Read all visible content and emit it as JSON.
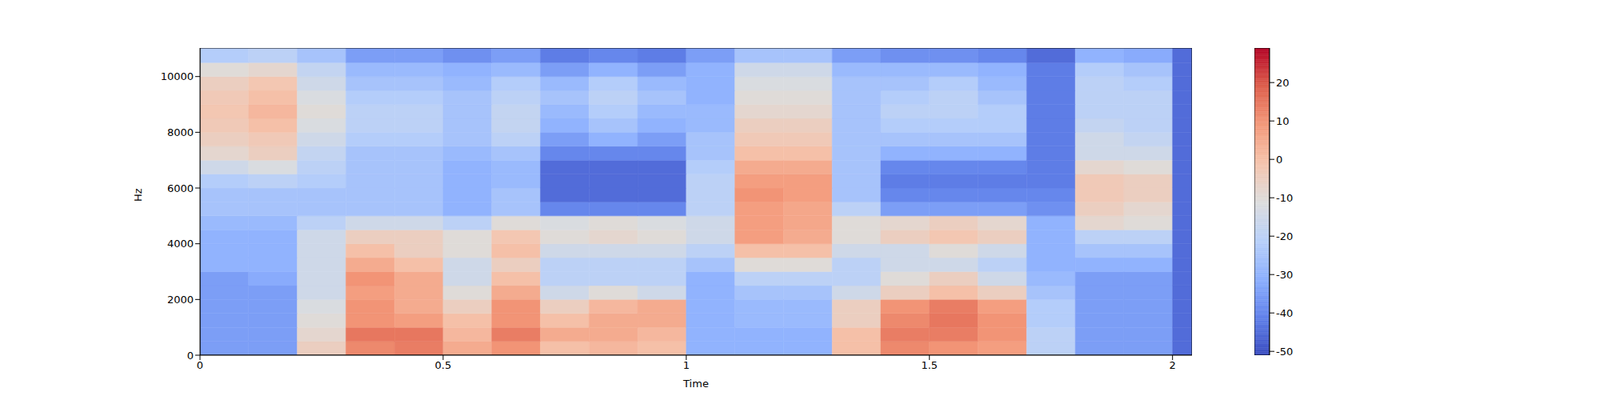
{
  "chart_data": {
    "type": "heatmap",
    "xlabel": "Time",
    "ylabel": "Hz",
    "xlim": [
      0,
      2.04
    ],
    "xticks": [
      0,
      0.5,
      1,
      1.5,
      2
    ],
    "ylim": [
      0,
      11025
    ],
    "yticks": [
      0,
      2000,
      4000,
      6000,
      8000,
      10000
    ],
    "x_edges": [
      0,
      0.1,
      0.2,
      0.3,
      0.4,
      0.5,
      0.6,
      0.7,
      0.8,
      0.9,
      1.0,
      1.1,
      1.2,
      1.3,
      1.4,
      1.5,
      1.6,
      1.7,
      1.8,
      1.9,
      2.0,
      2.04
    ],
    "y_edges": [
      0,
      500,
      1000,
      1500,
      2000,
      2500,
      3000,
      3500,
      4000,
      4500,
      5000,
      5500,
      6000,
      6500,
      7000,
      7500,
      8000,
      8500,
      9000,
      9500,
      10000,
      10500,
      11025
    ],
    "cells": [
      [
        -35,
        -35,
        -5,
        12,
        14,
        5,
        10,
        0,
        2,
        0,
        -30,
        -30,
        -30,
        0,
        12,
        10,
        8,
        -20,
        -35,
        -35,
        -45
      ],
      [
        -35,
        -35,
        -8,
        15,
        15,
        2,
        14,
        5,
        5,
        2,
        -30,
        -30,
        -30,
        0,
        14,
        14,
        10,
        -20,
        -35,
        -35,
        -45
      ],
      [
        -35,
        -35,
        -10,
        10,
        8,
        0,
        10,
        0,
        5,
        5,
        -30,
        -28,
        -28,
        -5,
        12,
        15,
        10,
        -22,
        -35,
        -35,
        -45
      ],
      [
        -35,
        -35,
        -12,
        10,
        5,
        -5,
        10,
        -5,
        2,
        5,
        -30,
        -28,
        -28,
        -5,
        10,
        14,
        8,
        -22,
        -35,
        -35,
        -45
      ],
      [
        -35,
        -35,
        -15,
        8,
        5,
        -10,
        5,
        -15,
        -10,
        -15,
        -30,
        -25,
        -25,
        -15,
        -5,
        0,
        -5,
        -25,
        -35,
        -35,
        -45
      ],
      [
        -35,
        -32,
        -15,
        10,
        5,
        -15,
        0,
        -20,
        -20,
        -20,
        -30,
        -20,
        -20,
        -20,
        -10,
        -5,
        -15,
        -28,
        -35,
        -35,
        -45
      ],
      [
        -30,
        -30,
        -15,
        5,
        0,
        -15,
        -5,
        -20,
        -20,
        -20,
        -25,
        -10,
        -10,
        -20,
        -15,
        -15,
        -20,
        -30,
        -30,
        -30,
        -45
      ],
      [
        -30,
        -30,
        -15,
        0,
        -5,
        -10,
        0,
        -15,
        -15,
        -15,
        -20,
        0,
        0,
        -15,
        -15,
        -10,
        -15,
        -30,
        -25,
        -25,
        -45
      ],
      [
        -30,
        -30,
        -15,
        -5,
        -5,
        -10,
        -2,
        -10,
        -8,
        -10,
        -15,
        8,
        5,
        -10,
        -5,
        -2,
        -5,
        -30,
        -20,
        -20,
        -45
      ],
      [
        -28,
        -28,
        -20,
        -15,
        -15,
        -20,
        -10,
        -12,
        -10,
        -12,
        -15,
        8,
        6,
        -10,
        -8,
        -5,
        -8,
        -30,
        -8,
        -10,
        -45
      ],
      [
        -25,
        -25,
        -25,
        -25,
        -25,
        -30,
        -25,
        -40,
        -40,
        -40,
        -20,
        8,
        6,
        -20,
        -35,
        -35,
        -35,
        -38,
        -5,
        -8,
        -45
      ],
      [
        -25,
        -25,
        -25,
        -25,
        -25,
        -30,
        -25,
        -45,
        -45,
        -45,
        -20,
        10,
        8,
        -25,
        -40,
        -40,
        -40,
        -40,
        -3,
        -5,
        -45
      ],
      [
        -22,
        -20,
        -22,
        -25,
        -25,
        -30,
        -28,
        -45,
        -45,
        -45,
        -20,
        8,
        8,
        -25,
        -42,
        -42,
        -42,
        -42,
        -3,
        -5,
        -45
      ],
      [
        -15,
        -12,
        -20,
        -25,
        -25,
        -30,
        -28,
        -45,
        -45,
        -45,
        -22,
        5,
        5,
        -25,
        -40,
        -40,
        -40,
        -42,
        -8,
        -10,
        -45
      ],
      [
        -8,
        -5,
        -18,
        -25,
        -25,
        -28,
        -25,
        -40,
        -40,
        -40,
        -25,
        0,
        0,
        -25,
        -30,
        -30,
        -30,
        -42,
        -15,
        -15,
        -45
      ],
      [
        -5,
        -3,
        -15,
        -22,
        -22,
        -25,
        -20,
        -35,
        -30,
        -35,
        -25,
        -3,
        -3,
        -25,
        -25,
        -25,
        -25,
        -42,
        -15,
        -18,
        -45
      ],
      [
        -3,
        0,
        -12,
        -20,
        -20,
        -25,
        -18,
        -30,
        -25,
        -30,
        -28,
        -5,
        -5,
        -25,
        -22,
        -22,
        -22,
        -42,
        -18,
        -20,
        -45
      ],
      [
        -2,
        2,
        -10,
        -20,
        -20,
        -25,
        -18,
        -28,
        -22,
        -28,
        -28,
        -8,
        -8,
        -25,
        -20,
        -20,
        -22,
        -42,
        -20,
        -20,
        -45
      ],
      [
        -3,
        0,
        -12,
        -22,
        -22,
        -25,
        -20,
        -25,
        -20,
        -25,
        -30,
        -10,
        -10,
        -25,
        -22,
        -20,
        -25,
        -42,
        -20,
        -20,
        -45
      ],
      [
        -5,
        -2,
        -15,
        -25,
        -25,
        -28,
        -22,
        -28,
        -22,
        -28,
        -30,
        -12,
        -12,
        -25,
        -25,
        -22,
        -28,
        -42,
        -20,
        -22,
        -45
      ],
      [
        -10,
        -8,
        -18,
        -28,
        -28,
        -30,
        -28,
        -35,
        -30,
        -35,
        -30,
        -15,
        -15,
        -28,
        -28,
        -28,
        -30,
        -42,
        -22,
        -25,
        -45
      ],
      [
        -22,
        -20,
        -25,
        -35,
        -35,
        -38,
        -35,
        -42,
        -40,
        -42,
        -35,
        -25,
        -25,
        -35,
        -38,
        -38,
        -40,
        -45,
        -30,
        -32,
        -45
      ]
    ],
    "colorbar_range": [
      -51,
      29
    ],
    "colorbar_ticks": [
      -50,
      -40,
      -30,
      -20,
      -10,
      0,
      10,
      20
    ]
  }
}
